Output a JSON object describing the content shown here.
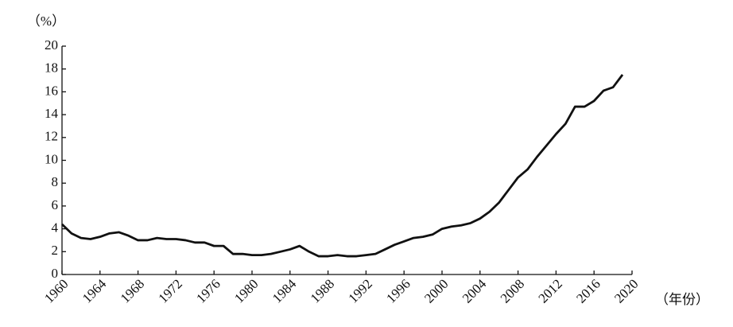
{
  "chart_data": {
    "type": "line",
    "y_label": "（%）",
    "x_label": "（年份）",
    "x": [
      1960,
      1961,
      1962,
      1963,
      1964,
      1965,
      1966,
      1967,
      1968,
      1969,
      1970,
      1971,
      1972,
      1973,
      1974,
      1975,
      1976,
      1977,
      1978,
      1979,
      1980,
      1981,
      1982,
      1983,
      1984,
      1985,
      1986,
      1987,
      1988,
      1989,
      1990,
      1991,
      1992,
      1993,
      1994,
      1995,
      1996,
      1997,
      1998,
      1999,
      2000,
      2001,
      2002,
      2003,
      2004,
      2005,
      2006,
      2007,
      2008,
      2009,
      2010,
      2011,
      2012,
      2013,
      2014,
      2015,
      2016,
      2017,
      2018,
      2019
    ],
    "values": [
      4.4,
      3.6,
      3.2,
      3.1,
      3.3,
      3.6,
      3.7,
      3.4,
      3.0,
      3.0,
      3.2,
      3.1,
      3.1,
      3.0,
      2.8,
      2.8,
      2.5,
      2.5,
      1.8,
      1.8,
      1.7,
      1.7,
      1.8,
      2.0,
      2.2,
      2.5,
      2.0,
      1.6,
      1.6,
      1.7,
      1.6,
      1.6,
      1.7,
      1.8,
      2.2,
      2.6,
      2.9,
      3.2,
      3.3,
      3.5,
      4.0,
      4.2,
      4.3,
      4.5,
      4.9,
      5.5,
      6.3,
      7.4,
      8.5,
      9.2,
      10.3,
      11.3,
      12.3,
      13.2,
      14.7,
      14.7,
      15.2,
      16.1,
      16.4,
      17.5
    ],
    "color": "#111111",
    "xlim": [
      1960,
      2020
    ],
    "xticks": [
      1960,
      1964,
      1968,
      1972,
      1976,
      1980,
      1984,
      1988,
      1992,
      1996,
      2000,
      2004,
      2008,
      2012,
      2016,
      2020
    ],
    "ylim": [
      0,
      20
    ],
    "yticks": [
      0,
      2,
      4,
      6,
      8,
      10,
      12,
      14,
      16,
      18,
      20
    ]
  }
}
